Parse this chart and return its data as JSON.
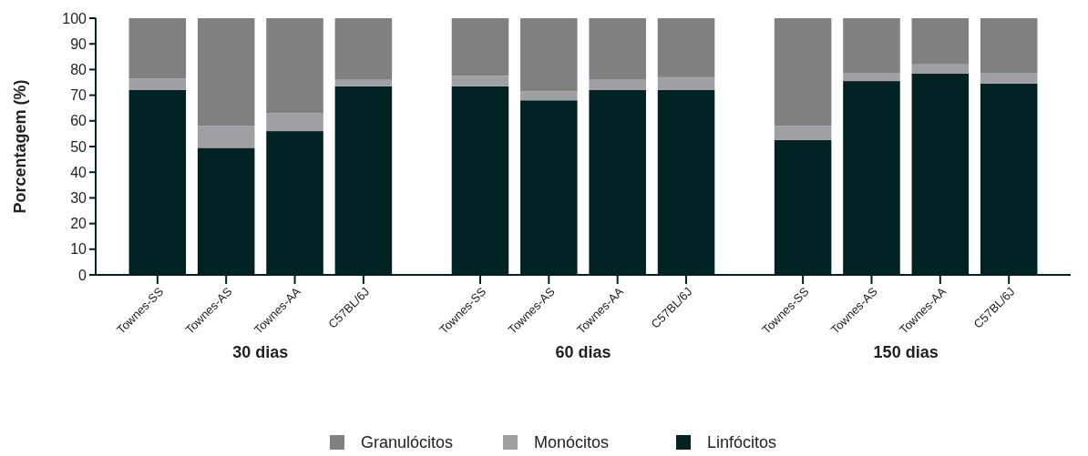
{
  "chart_data": {
    "type": "bar",
    "stacked": true,
    "ylabel": "Porcentagem (%)",
    "categories": [
      "Townes-SS",
      "Townes-AS",
      "Townes-AA",
      "C57BL/6J",
      "Townes-SS",
      "Townes-AS",
      "Townes-AA",
      "C57BL/6J",
      "Townes-SS",
      "Townes-AS",
      "Townes-AA",
      "C57BL/6J"
    ],
    "series": [
      {
        "name": "Linfócitos",
        "color": "#012222",
        "values": [
          72,
          49.5,
          56,
          73.5,
          73.5,
          68,
          72,
          72,
          52.5,
          75.5,
          78.5,
          74.5
        ]
      },
      {
        "name": "Monócitos",
        "color": "#a0a0a4",
        "values": [
          4.5,
          8.5,
          7,
          2.5,
          4,
          3.5,
          4,
          5,
          5.5,
          3,
          3.5,
          4
        ]
      },
      {
        "name": "Granulócitos",
        "color": "#808080",
        "values": [
          23.5,
          42,
          37,
          24,
          22.5,
          28.5,
          24,
          23,
          42,
          21.5,
          18,
          21.5
        ]
      }
    ],
    "annotations": [
      "30 dias",
      "60 dias",
      "150 dias"
    ],
    "ylim": [
      0,
      100
    ],
    "yticks": [
      0,
      10,
      20,
      30,
      40,
      50,
      60,
      70,
      80,
      90,
      100
    ],
    "grid": false,
    "legend": "bottom"
  }
}
